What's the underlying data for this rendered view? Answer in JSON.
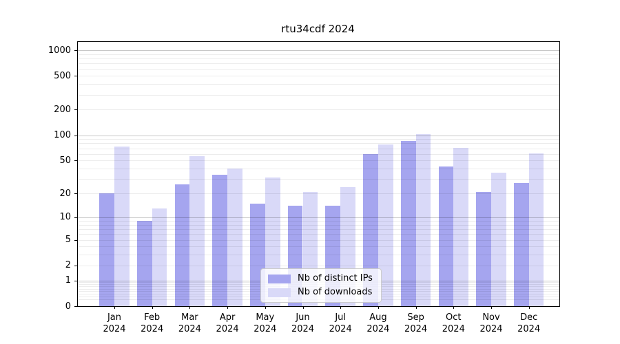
{
  "chart_data": {
    "type": "bar",
    "title": "rtu34cdf 2024",
    "categories": [
      "Jan",
      "Feb",
      "Mar",
      "Apr",
      "May",
      "Jun",
      "Jul",
      "Aug",
      "Sep",
      "Oct",
      "Nov",
      "Dec"
    ],
    "category_sublabel": "2024",
    "series": [
      {
        "name": "Nb of distinct IPs",
        "color": "#a5a5ef",
        "values": [
          20,
          9,
          26,
          34,
          15,
          14,
          14,
          60,
          85,
          42,
          21,
          27
        ]
      },
      {
        "name": "Nb of downloads",
        "color": "#d9d9f8",
        "values": [
          74,
          13,
          56,
          40,
          31,
          21,
          24,
          78,
          102,
          70,
          36,
          61
        ]
      }
    ],
    "yscale": "log1p",
    "ylim": [
      0,
      1250
    ],
    "yticks": [
      0,
      1,
      2,
      5,
      10,
      20,
      50,
      100,
      200,
      500,
      1000
    ],
    "grid": true,
    "minor_grid": true,
    "major_grid_values": [
      1,
      10,
      100,
      1000
    ],
    "legend_position": "inside lower-center"
  }
}
